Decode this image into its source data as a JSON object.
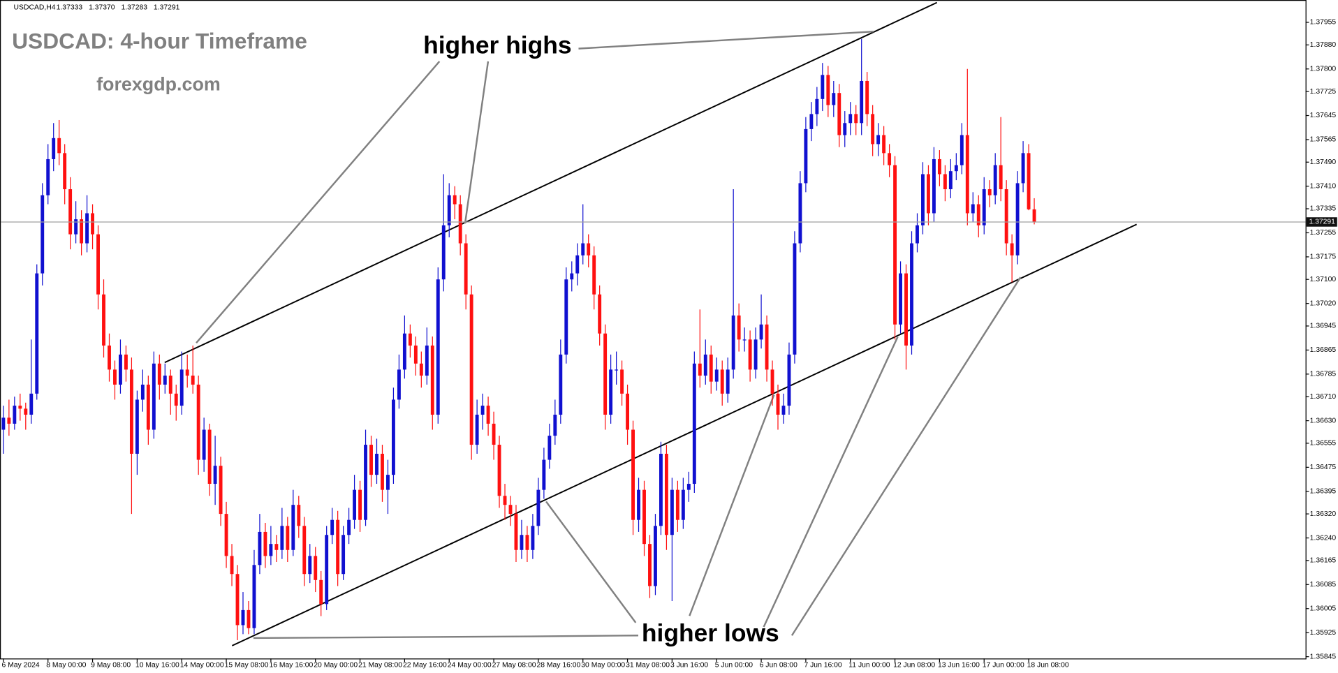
{
  "chart_data": {
    "type": "candlestick",
    "symbol": "USDCAD,H4",
    "header_values": [
      "1.37333",
      "1.37370",
      "1.37283",
      "1.37291"
    ],
    "title": "USDCAD: 4-hour Timeframe",
    "subtitle": "forexgdp.com",
    "annotations": [
      "higher highs",
      "higher lows"
    ],
    "bull_color": "#1010d0",
    "bear_color": "#ff1010",
    "ylim": [
      1.35839,
      1.38018
    ],
    "yticks": [
      1.37955,
      {
        "value": 1.3788,
        "label": "1.37880"
      },
      {
        "value": 1.378,
        "label": "1.37800"
      },
      1.37725,
      1.37645,
      1.37565,
      {
        "value": 1.3749,
        "label": "1.37490"
      },
      {
        "value": 1.3741,
        "label": "1.37410"
      },
      1.37335,
      1.37255,
      1.37175,
      {
        "value": 1.371,
        "label": "1.37100"
      },
      {
        "value": 1.3702,
        "label": "1.37020"
      },
      1.36945,
      1.36865,
      1.36785,
      {
        "value": 1.3671,
        "label": "1.36710"
      },
      {
        "value": 1.3663,
        "label": "1.36630"
      },
      1.36555,
      1.36475,
      1.36395,
      {
        "value": 1.3632,
        "label": "1.36320"
      },
      {
        "value": 1.3624,
        "label": "1.36240"
      },
      1.36165,
      1.36085,
      1.36005,
      1.35925,
      1.35845
    ],
    "current_price": {
      "value": 1.37291,
      "label": "1.37291"
    },
    "categories": [
      "6 May 2024",
      null,
      null,
      null,
      null,
      null,
      null,
      null,
      "8 May 00:00",
      null,
      null,
      null,
      null,
      null,
      null,
      null,
      "9 May 08:00",
      null,
      null,
      null,
      null,
      null,
      null,
      null,
      "10 May 16:00",
      null,
      null,
      null,
      null,
      null,
      null,
      null,
      "14 May 00:00",
      null,
      null,
      null,
      null,
      null,
      null,
      null,
      "15 May 08:00",
      null,
      null,
      null,
      null,
      null,
      null,
      null,
      "16 May 16:00",
      null,
      null,
      null,
      null,
      null,
      null,
      null,
      "20 May 00:00",
      null,
      null,
      null,
      null,
      null,
      null,
      null,
      "21 May 08:00",
      null,
      null,
      null,
      null,
      null,
      null,
      null,
      "22 May 16:00",
      null,
      null,
      null,
      null,
      null,
      null,
      null,
      "24 May 00:00",
      null,
      null,
      null,
      null,
      null,
      null,
      null,
      "27 May 08:00",
      null,
      null,
      null,
      null,
      null,
      null,
      null,
      "28 May 16:00",
      null,
      null,
      null,
      null,
      null,
      null,
      null,
      "30 May 00:00",
      null,
      null,
      null,
      null,
      null,
      null,
      null,
      "31 May 08:00",
      null,
      null,
      null,
      null,
      null,
      null,
      null,
      "3 Jun 16:00",
      null,
      null,
      null,
      null,
      null,
      null,
      null,
      "5 Jun 00:00",
      null,
      null,
      null,
      null,
      null,
      null,
      null,
      "6 Jun 08:00",
      null,
      null,
      null,
      null,
      null,
      null,
      null,
      "7 Jun 16:00",
      null,
      null,
      null,
      null,
      null,
      null,
      null,
      "11 Jun 00:00",
      null,
      null,
      null,
      null,
      null,
      null,
      null,
      "12 Jun 08:00",
      null,
      null,
      null,
      null,
      null,
      null,
      null,
      "13 Jun 16:00",
      null,
      null,
      null,
      null,
      null,
      null,
      null,
      "17 Jun 00:00",
      null,
      null,
      null,
      null,
      null,
      null,
      null,
      "18 Jun 08:00",
      null
    ],
    "ohlc": [
      [
        1.366,
        1.3668,
        1.3652,
        1.3664
      ],
      [
        1.3664,
        1.367,
        1.3658,
        1.3662
      ],
      [
        1.3662,
        1.3671,
        1.366,
        1.3668
      ],
      [
        1.3668,
        1.3672,
        1.3663,
        1.3667
      ],
      [
        1.3667,
        1.3669,
        1.366,
        1.3665
      ],
      [
        1.3665,
        1.369,
        1.3662,
        1.3672
      ],
      [
        1.3672,
        1.3715,
        1.367,
        1.3712
      ],
      [
        1.3712,
        1.3742,
        1.3708,
        1.3738
      ],
      [
        1.3738,
        1.3755,
        1.3735,
        1.375
      ],
      [
        1.375,
        1.3762,
        1.3746,
        1.3757
      ],
      [
        1.3757,
        1.3763,
        1.3748,
        1.3752
      ],
      [
        1.3752,
        1.3755,
        1.3735,
        1.374
      ],
      [
        1.374,
        1.3744,
        1.372,
        1.3725
      ],
      [
        1.3725,
        1.3736,
        1.3722,
        1.373
      ],
      [
        1.373,
        1.3733,
        1.3718,
        1.3722
      ],
      [
        1.3722,
        1.3738,
        1.3719,
        1.3732
      ],
      [
        1.3732,
        1.3735,
        1.372,
        1.3725
      ],
      [
        1.3725,
        1.3728,
        1.37,
        1.3705
      ],
      [
        1.3705,
        1.371,
        1.3684,
        1.3688
      ],
      [
        1.3688,
        1.3692,
        1.3676,
        1.368
      ],
      [
        1.368,
        1.3683,
        1.367,
        1.3675
      ],
      [
        1.3675,
        1.369,
        1.3672,
        1.3685
      ],
      [
        1.3685,
        1.3688,
        1.3676,
        1.368
      ],
      [
        1.368,
        1.3684,
        1.3632,
        1.3652
      ],
      [
        1.3652,
        1.3673,
        1.3645,
        1.367
      ],
      [
        1.367,
        1.368,
        1.3666,
        1.3675
      ],
      [
        1.3675,
        1.3678,
        1.3655,
        1.366
      ],
      [
        1.366,
        1.3686,
        1.3657,
        1.3682
      ],
      [
        1.3682,
        1.3685,
        1.367,
        1.3675
      ],
      [
        1.3675,
        1.3682,
        1.3672,
        1.3678
      ],
      [
        1.3678,
        1.368,
        1.3665,
        1.3672
      ],
      [
        1.3672,
        1.3675,
        1.3663,
        1.3668
      ],
      [
        1.3668,
        1.3686,
        1.3665,
        1.368
      ],
      [
        1.368,
        1.3685,
        1.3674,
        1.3678
      ],
      [
        1.3678,
        1.3688,
        1.3672,
        1.3675
      ],
      [
        1.3675,
        1.3678,
        1.3645,
        1.365
      ],
      [
        1.365,
        1.3664,
        1.3646,
        1.366
      ],
      [
        1.366,
        1.3662,
        1.3638,
        1.3642
      ],
      [
        1.3642,
        1.3658,
        1.3635,
        1.3648
      ],
      [
        1.3648,
        1.3651,
        1.3628,
        1.3632
      ],
      [
        1.3632,
        1.3636,
        1.3614,
        1.3618
      ],
      [
        1.3618,
        1.3622,
        1.3608,
        1.3612
      ],
      [
        1.3612,
        1.3615,
        1.359,
        1.3595
      ],
      [
        1.3595,
        1.3606,
        1.3592,
        1.36
      ],
      [
        1.36,
        1.3603,
        1.3592,
        1.3594
      ],
      [
        1.3594,
        1.362,
        1.3592,
        1.3615
      ],
      [
        1.3615,
        1.3632,
        1.3612,
        1.3626
      ],
      [
        1.3626,
        1.3629,
        1.3614,
        1.3618
      ],
      [
        1.3618,
        1.3628,
        1.3615,
        1.3622
      ],
      [
        1.3622,
        1.3625,
        1.3616,
        1.362
      ],
      [
        1.362,
        1.3634,
        1.3617,
        1.3628
      ],
      [
        1.3628,
        1.3631,
        1.3616,
        1.362
      ],
      [
        1.362,
        1.364,
        1.3618,
        1.3635
      ],
      [
        1.3635,
        1.3638,
        1.3624,
        1.3628
      ],
      [
        1.3628,
        1.3631,
        1.3608,
        1.3612
      ],
      [
        1.3612,
        1.3622,
        1.3609,
        1.3618
      ],
      [
        1.3618,
        1.3621,
        1.3606,
        1.361
      ],
      [
        1.361,
        1.3613,
        1.3598,
        1.3602
      ],
      [
        1.3602,
        1.3628,
        1.36,
        1.3625
      ],
      [
        1.3625,
        1.3634,
        1.3622,
        1.363
      ],
      [
        1.363,
        1.3633,
        1.3608,
        1.3612
      ],
      [
        1.3612,
        1.3628,
        1.361,
        1.3625
      ],
      [
        1.3625,
        1.3634,
        1.3622,
        1.363
      ],
      [
        1.363,
        1.3645,
        1.3627,
        1.364
      ],
      [
        1.364,
        1.3643,
        1.3626,
        1.363
      ],
      [
        1.363,
        1.366,
        1.3628,
        1.3655
      ],
      [
        1.3655,
        1.3658,
        1.3641,
        1.3645
      ],
      [
        1.3645,
        1.3657,
        1.3642,
        1.3652
      ],
      [
        1.3652,
        1.3655,
        1.3636,
        1.364
      ],
      [
        1.364,
        1.365,
        1.3632,
        1.3645
      ],
      [
        1.3645,
        1.3674,
        1.3642,
        1.367
      ],
      [
        1.367,
        1.3685,
        1.3667,
        1.368
      ],
      [
        1.368,
        1.3698,
        1.3677,
        1.3692
      ],
      [
        1.3692,
        1.3695,
        1.3684,
        1.3688
      ],
      [
        1.3688,
        1.3691,
        1.3678,
        1.3682
      ],
      [
        1.3682,
        1.3686,
        1.3674,
        1.3678
      ],
      [
        1.3678,
        1.3694,
        1.3675,
        1.3688
      ],
      [
        1.3688,
        1.3691,
        1.366,
        1.3665
      ],
      [
        1.3665,
        1.3714,
        1.3662,
        1.371
      ],
      [
        1.371,
        1.3745,
        1.3706,
        1.3728
      ],
      [
        1.3728,
        1.3742,
        1.3724,
        1.3738
      ],
      [
        1.3738,
        1.3741,
        1.373,
        1.3735
      ],
      [
        1.3735,
        1.3738,
        1.3718,
        1.3722
      ],
      [
        1.3722,
        1.3725,
        1.37,
        1.3705
      ],
      [
        1.3705,
        1.3708,
        1.365,
        1.3655
      ],
      [
        1.3655,
        1.367,
        1.3652,
        1.3665
      ],
      [
        1.3665,
        1.3672,
        1.366,
        1.3668
      ],
      [
        1.3668,
        1.3671,
        1.3658,
        1.3662
      ],
      [
        1.3662,
        1.3666,
        1.365,
        1.3655
      ],
      [
        1.3655,
        1.3658,
        1.3634,
        1.3638
      ],
      [
        1.3638,
        1.3642,
        1.363,
        1.3635
      ],
      [
        1.3635,
        1.3638,
        1.3628,
        1.3632
      ],
      [
        1.3632,
        1.3635,
        1.3616,
        1.362
      ],
      [
        1.362,
        1.363,
        1.3617,
        1.3625
      ],
      [
        1.3625,
        1.3628,
        1.3616,
        1.362
      ],
      [
        1.362,
        1.3632,
        1.3617,
        1.3628
      ],
      [
        1.3628,
        1.3644,
        1.3625,
        1.364
      ],
      [
        1.364,
        1.3654,
        1.3637,
        1.365
      ],
      [
        1.365,
        1.3662,
        1.3647,
        1.3658
      ],
      [
        1.3658,
        1.367,
        1.3655,
        1.3665
      ],
      [
        1.3665,
        1.369,
        1.3662,
        1.3685
      ],
      [
        1.3685,
        1.3714,
        1.3682,
        1.371
      ],
      [
        1.371,
        1.3716,
        1.3706,
        1.3712
      ],
      [
        1.3712,
        1.3722,
        1.3708,
        1.3718
      ],
      [
        1.3718,
        1.3735,
        1.3715,
        1.3722
      ],
      [
        1.3722,
        1.3725,
        1.3714,
        1.3718
      ],
      [
        1.3718,
        1.3721,
        1.37,
        1.3705
      ],
      [
        1.3705,
        1.3708,
        1.3688,
        1.3692
      ],
      [
        1.3692,
        1.3695,
        1.366,
        1.3665
      ],
      [
        1.3665,
        1.3685,
        1.3662,
        1.368
      ],
      [
        1.368,
        1.3686,
        1.3675,
        1.368
      ],
      [
        1.368,
        1.3683,
        1.3668,
        1.3672
      ],
      [
        1.3672,
        1.3675,
        1.3655,
        1.366
      ],
      [
        1.366,
        1.3663,
        1.3625,
        1.363
      ],
      [
        1.363,
        1.3644,
        1.3626,
        1.364
      ],
      [
        1.364,
        1.3643,
        1.3618,
        1.3622
      ],
      [
        1.3622,
        1.3625,
        1.3604,
        1.3608
      ],
      [
        1.3608,
        1.3632,
        1.3605,
        1.3628
      ],
      [
        1.3628,
        1.3656,
        1.3625,
        1.3652
      ],
      [
        1.3652,
        1.3655,
        1.362,
        1.3625
      ],
      [
        1.3625,
        1.3644,
        1.3603,
        1.364
      ],
      [
        1.364,
        1.3643,
        1.3626,
        1.363
      ],
      [
        1.363,
        1.3644,
        1.3627,
        1.364
      ],
      [
        1.364,
        1.3646,
        1.3636,
        1.3642
      ],
      [
        1.3642,
        1.3686,
        1.3639,
        1.3682
      ],
      [
        1.3682,
        1.37,
        1.3674,
        1.3678
      ],
      [
        1.3678,
        1.369,
        1.3675,
        1.3685
      ],
      [
        1.3685,
        1.3688,
        1.3672,
        1.3676
      ],
      [
        1.3676,
        1.3684,
        1.3673,
        1.368
      ],
      [
        1.368,
        1.3683,
        1.3668,
        1.3672
      ],
      [
        1.3672,
        1.3684,
        1.3669,
        1.368
      ],
      [
        1.368,
        1.374,
        1.3677,
        1.3698
      ],
      [
        1.3698,
        1.3702,
        1.3686,
        1.369
      ],
      [
        1.369,
        1.3694,
        1.3686,
        1.369
      ],
      [
        1.369,
        1.3693,
        1.3676,
        1.368
      ],
      [
        1.368,
        1.3694,
        1.3677,
        1.369
      ],
      [
        1.369,
        1.3705,
        1.3687,
        1.3695
      ],
      [
        1.3695,
        1.3698,
        1.3676,
        1.368
      ],
      [
        1.368,
        1.3683,
        1.3668,
        1.3672
      ],
      [
        1.3672,
        1.3675,
        1.366,
        1.3665
      ],
      [
        1.3665,
        1.3672,
        1.3662,
        1.3668
      ],
      [
        1.3668,
        1.3689,
        1.3665,
        1.3685
      ],
      [
        1.3685,
        1.3726,
        1.3682,
        1.3722
      ],
      [
        1.3722,
        1.3746,
        1.3719,
        1.3742
      ],
      [
        1.3742,
        1.3764,
        1.3739,
        1.376
      ],
      [
        1.376,
        1.3769,
        1.3756,
        1.3765
      ],
      [
        1.3765,
        1.3774,
        1.3761,
        1.377
      ],
      [
        1.377,
        1.3782,
        1.3766,
        1.3778
      ],
      [
        1.3778,
        1.3781,
        1.3764,
        1.3768
      ],
      [
        1.3768,
        1.3776,
        1.3764,
        1.3772
      ],
      [
        1.3772,
        1.3775,
        1.3754,
        1.3758
      ],
      [
        1.3758,
        1.3766,
        1.3754,
        1.3762
      ],
      [
        1.3762,
        1.3769,
        1.3758,
        1.3765
      ],
      [
        1.3765,
        1.3768,
        1.3758,
        1.3762
      ],
      [
        1.3762,
        1.379,
        1.3758,
        1.3776
      ],
      [
        1.3776,
        1.3779,
        1.3761,
        1.3765
      ],
      [
        1.3765,
        1.3768,
        1.3751,
        1.3755
      ],
      [
        1.3755,
        1.3762,
        1.3751,
        1.3758
      ],
      [
        1.3758,
        1.3761,
        1.3748,
        1.3752
      ],
      [
        1.3752,
        1.3755,
        1.3744,
        1.3748
      ],
      [
        1.3748,
        1.3751,
        1.369,
        1.3695
      ],
      [
        1.3695,
        1.3716,
        1.3692,
        1.3712
      ],
      [
        1.3712,
        1.3715,
        1.368,
        1.3688
      ],
      [
        1.3688,
        1.3726,
        1.3685,
        1.3722
      ],
      [
        1.3722,
        1.3732,
        1.3719,
        1.3728
      ],
      [
        1.3728,
        1.3749,
        1.3725,
        1.3745
      ],
      [
        1.3745,
        1.3748,
        1.3728,
        1.3732
      ],
      [
        1.3732,
        1.3754,
        1.3729,
        1.375
      ],
      [
        1.375,
        1.3753,
        1.3741,
        1.3745
      ],
      [
        1.3745,
        1.3748,
        1.3736,
        1.374
      ],
      [
        1.374,
        1.375,
        1.3737,
        1.3746
      ],
      [
        1.3746,
        1.3752,
        1.3743,
        1.3748
      ],
      [
        1.3748,
        1.3762,
        1.3745,
        1.3758
      ],
      [
        1.3758,
        1.378,
        1.3728,
        1.3732
      ],
      [
        1.3732,
        1.3739,
        1.3729,
        1.3735
      ],
      [
        1.3735,
        1.3738,
        1.3724,
        1.3728
      ],
      [
        1.3728,
        1.3744,
        1.3725,
        1.374
      ],
      [
        1.374,
        1.3743,
        1.3734,
        1.3738
      ],
      [
        1.3738,
        1.3752,
        1.3735,
        1.3748
      ],
      [
        1.3748,
        1.3764,
        1.3736,
        1.374
      ],
      [
        1.374,
        1.3743,
        1.3718,
        1.3722
      ],
      [
        1.3722,
        1.3725,
        1.3709,
        1.3718
      ],
      [
        1.3718,
        1.3746,
        1.3715,
        1.3742
      ],
      [
        1.3742,
        1.3756,
        1.3739,
        1.3752
      ],
      [
        1.3752,
        1.3755,
        1.3733,
        1.37333
      ],
      [
        1.37333,
        1.3737,
        1.37283,
        1.37291
      ]
    ]
  }
}
